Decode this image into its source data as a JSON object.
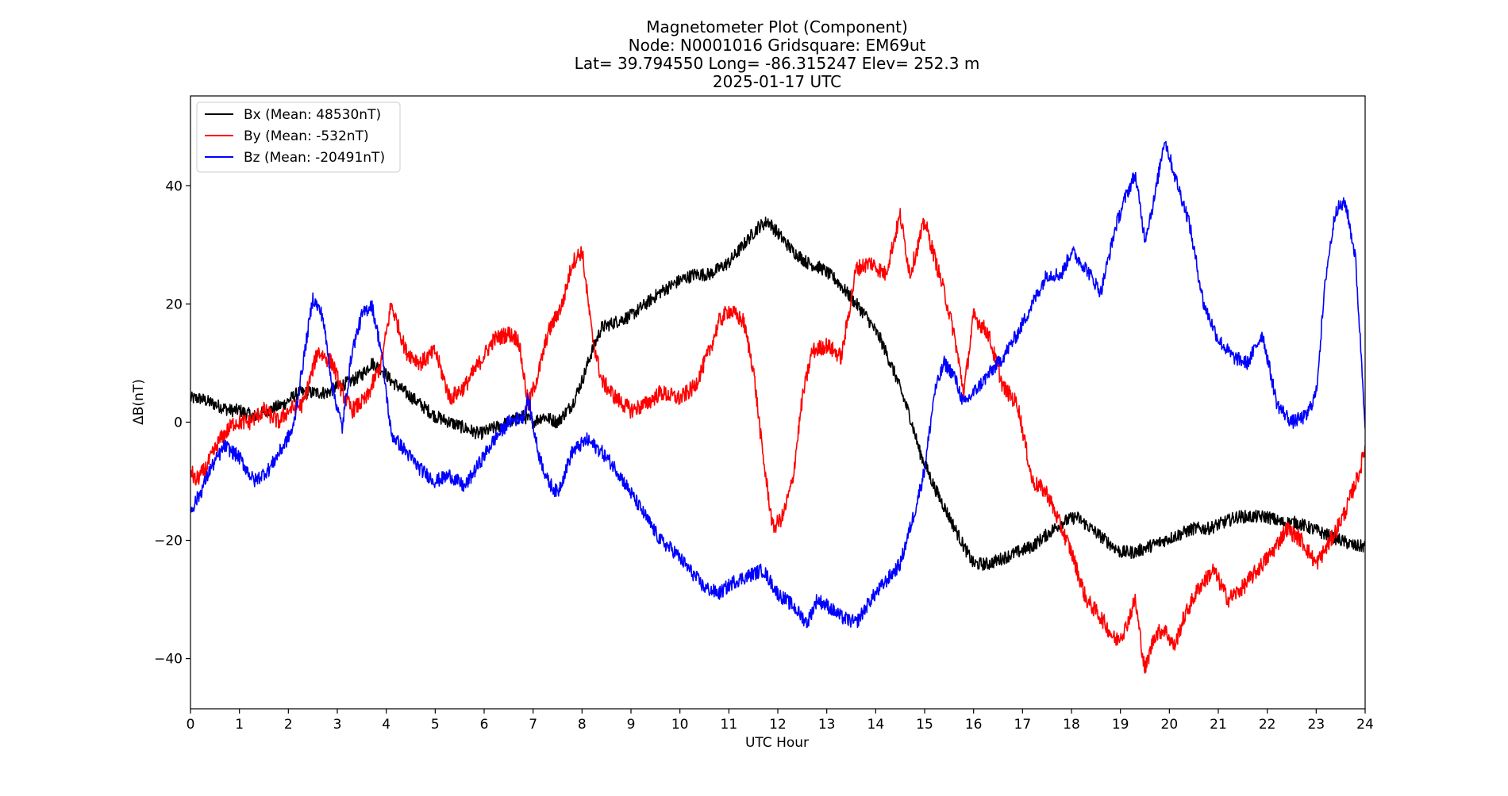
{
  "chart_data": {
    "type": "line",
    "title_lines": [
      "Magnetometer Plot (Component)",
      "Node:  N0001016     Gridsquare:  EM69ut",
      "Lat= 39.794550    Long= -86.315247    Elev= 252.3 m",
      "2025-01-17  UTC"
    ],
    "xlabel": "UTC Hour",
    "ylabel": "ΔB(nT)",
    "xlim": [
      0,
      24
    ],
    "ylim": [
      -48.5,
      55.2
    ],
    "xticks": [
      0,
      1,
      2,
      3,
      4,
      5,
      6,
      7,
      8,
      9,
      10,
      11,
      12,
      13,
      14,
      15,
      16,
      17,
      18,
      19,
      20,
      21,
      22,
      23,
      24
    ],
    "yticks": [
      -40,
      -20,
      0,
      20,
      40
    ],
    "ytick_labels": [
      "−40",
      "−20",
      "0",
      "20",
      "40"
    ],
    "grid": false,
    "legend_position": "top-left",
    "series": [
      {
        "name": "Bx (Mean: 48530nT)",
        "color": "#000000",
        "noise": 1.1,
        "x": [
          0,
          0.2,
          0.5,
          0.8,
          1.0,
          1.3,
          1.6,
          1.9,
          2.2,
          2.5,
          2.8,
          3.0,
          3.3,
          3.5,
          3.7,
          3.9,
          4.1,
          4.4,
          4.7,
          5.0,
          5.3,
          5.6,
          5.9,
          6.2,
          6.5,
          6.8,
          7.0,
          7.2,
          7.5,
          7.8,
          8.0,
          8.2,
          8.4,
          8.7,
          9.0,
          9.3,
          9.6,
          10.0,
          10.3,
          10.6,
          11.0,
          11.3,
          11.6,
          11.8,
          12.0,
          12.3,
          12.6,
          12.9,
          13.2,
          13.5,
          13.8,
          14.1,
          14.4,
          14.7,
          14.9,
          15.2,
          15.5,
          15.8,
          16.0,
          16.3,
          16.6,
          16.9,
          17.2,
          17.5,
          17.8,
          18.1,
          18.4,
          18.7,
          19.0,
          19.3,
          19.6,
          19.9,
          20.2,
          20.5,
          20.8,
          21.1,
          21.4,
          21.7,
          22.0,
          22.3,
          22.6,
          22.9,
          23.2,
          23.5,
          23.8,
          24.0
        ],
        "y": [
          4,
          4,
          3,
          2,
          2,
          1,
          2,
          3,
          5,
          5,
          5,
          6,
          7,
          8,
          10,
          9,
          7,
          5,
          3,
          1,
          0,
          -1,
          -2,
          -1,
          0,
          1,
          0,
          1,
          0,
          3,
          7,
          12,
          16,
          17,
          18,
          20,
          22,
          24,
          25,
          25,
          27,
          30,
          33,
          34,
          32,
          29,
          27,
          26,
          24,
          21,
          18,
          14,
          8,
          1,
          -5,
          -11,
          -16,
          -21,
          -24,
          -24,
          -23,
          -22,
          -21,
          -19,
          -17,
          -16,
          -18,
          -20,
          -22,
          -22,
          -21,
          -20,
          -19,
          -18,
          -18,
          -17,
          -16,
          -16,
          -16,
          -17,
          -17,
          -18,
          -19,
          -20,
          -21,
          -21
        ]
      },
      {
        "name": "By (Mean: -532nT)",
        "color": "#ff0000",
        "noise": 1.4,
        "x": [
          0,
          0.1,
          0.3,
          0.6,
          0.9,
          1.2,
          1.5,
          1.8,
          2.0,
          2.3,
          2.6,
          2.9,
          3.1,
          3.3,
          3.6,
          3.9,
          4.1,
          4.4,
          4.7,
          5.0,
          5.3,
          5.6,
          5.9,
          6.2,
          6.5,
          6.7,
          6.9,
          7.1,
          7.3,
          7.6,
          7.8,
          8.0,
          8.2,
          8.4,
          8.7,
          9.0,
          9.3,
          9.6,
          10.0,
          10.3,
          10.6,
          10.8,
          11.0,
          11.3,
          11.5,
          11.7,
          11.9,
          12.1,
          12.3,
          12.5,
          12.7,
          13.0,
          13.3,
          13.6,
          13.9,
          14.2,
          14.5,
          14.7,
          15.0,
          15.2,
          15.4,
          15.6,
          15.8,
          16.0,
          16.3,
          16.6,
          16.9,
          17.2,
          17.5,
          17.8,
          18.0,
          18.3,
          18.6,
          18.9,
          19.1,
          19.3,
          19.5,
          19.7,
          19.9,
          20.1,
          20.3,
          20.6,
          20.9,
          21.2,
          21.5,
          21.8,
          22.1,
          22.4,
          22.7,
          23.0,
          23.3,
          23.6,
          23.9,
          24.0
        ],
        "y": [
          -8,
          -10,
          -8,
          -3,
          0,
          0,
          2,
          0,
          2,
          3,
          12,
          10,
          5,
          2,
          4,
          10,
          20,
          12,
          10,
          12,
          4,
          6,
          10,
          14,
          15,
          14,
          3,
          8,
          15,
          20,
          27,
          29,
          15,
          7,
          4,
          2,
          3,
          5,
          4,
          6,
          12,
          17,
          19,
          17,
          9,
          -6,
          -18,
          -16,
          -10,
          4,
          12,
          13,
          11,
          26,
          27,
          25,
          35,
          25,
          34,
          28,
          22,
          15,
          5,
          18,
          15,
          6,
          3,
          -10,
          -12,
          -18,
          -22,
          -30,
          -33,
          -37,
          -35,
          -30,
          -42,
          -36,
          -35,
          -38,
          -33,
          -28,
          -25,
          -30,
          -28,
          -25,
          -22,
          -18,
          -20,
          -24,
          -20,
          -15,
          -8,
          -4
        ]
      },
      {
        "name": "Bz (Mean: -20491nT)",
        "color": "#0000ff",
        "noise": 1.2,
        "x": [
          0,
          0.2,
          0.4,
          0.7,
          1.0,
          1.3,
          1.6,
          1.9,
          2.1,
          2.3,
          2.5,
          2.7,
          2.9,
          3.1,
          3.3,
          3.5,
          3.7,
          3.9,
          4.1,
          4.4,
          4.7,
          5.0,
          5.3,
          5.6,
          5.9,
          6.2,
          6.5,
          6.8,
          6.9,
          7.1,
          7.3,
          7.5,
          7.8,
          8.1,
          8.4,
          8.7,
          9.0,
          9.3,
          9.6,
          9.9,
          10.2,
          10.5,
          10.8,
          11.1,
          11.4,
          11.7,
          12.0,
          12.3,
          12.6,
          12.8,
          13.0,
          13.3,
          13.6,
          13.9,
          14.2,
          14.5,
          14.8,
          15.0,
          15.2,
          15.4,
          15.6,
          15.8,
          16.0,
          16.3,
          16.6,
          16.9,
          17.2,
          17.5,
          17.8,
          18.0,
          18.3,
          18.6,
          18.9,
          19.1,
          19.3,
          19.5,
          19.7,
          19.9,
          20.1,
          20.4,
          20.7,
          21.0,
          21.3,
          21.6,
          21.9,
          22.2,
          22.5,
          22.8,
          23.0,
          23.2,
          23.4,
          23.6,
          23.8,
          24.0
        ],
        "y": [
          -15,
          -12,
          -8,
          -4,
          -6,
          -10,
          -8,
          -4,
          -1,
          10,
          21,
          18,
          6,
          -1,
          12,
          18,
          20,
          12,
          -2,
          -5,
          -8,
          -10,
          -9,
          -11,
          -7,
          -3,
          0,
          1,
          4,
          -5,
          -10,
          -12,
          -5,
          -3,
          -5,
          -8,
          -12,
          -16,
          -20,
          -22,
          -25,
          -28,
          -29,
          -27,
          -26,
          -25,
          -29,
          -31,
          -34,
          -30,
          -31,
          -33,
          -34,
          -30,
          -27,
          -24,
          -15,
          -8,
          5,
          10,
          8,
          3,
          5,
          8,
          11,
          15,
          20,
          25,
          25,
          29,
          26,
          22,
          33,
          38,
          42,
          31,
          38,
          48,
          42,
          34,
          20,
          14,
          11,
          10,
          15,
          3,
          0,
          1,
          5,
          25,
          36,
          37,
          28,
          0
        ]
      }
    ]
  }
}
